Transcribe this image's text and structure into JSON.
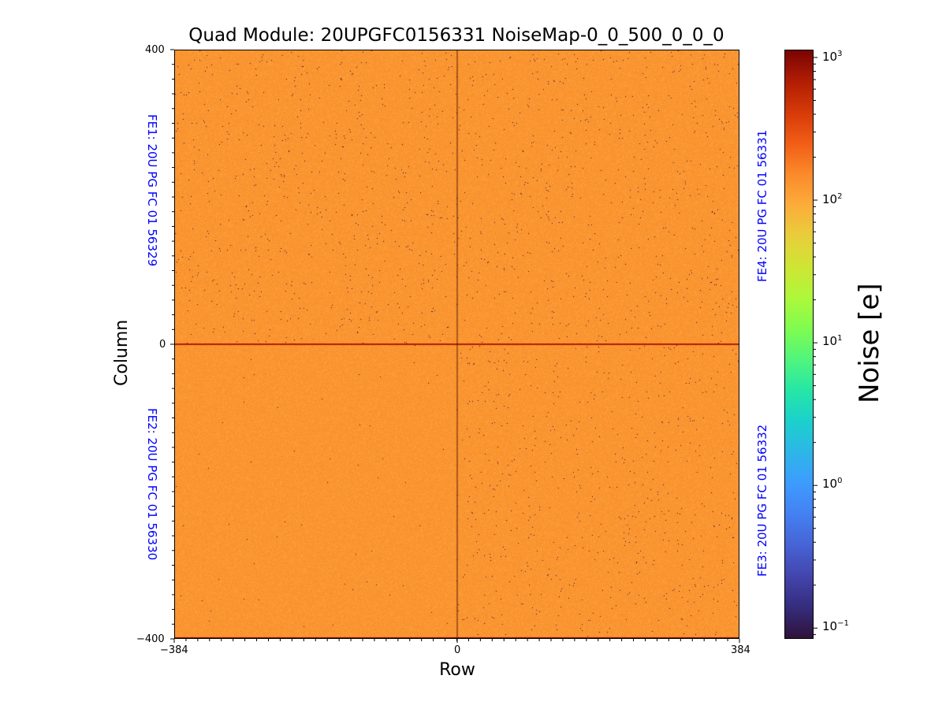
{
  "chart_data": {
    "type": "heatmap",
    "title": "Quad Module: 20UPGFC0156331 NoiseMap-0_0_500_0_0_0",
    "xlabel": "Row",
    "ylabel": "Column",
    "xlim": [
      -384,
      384
    ],
    "ylim": [
      -400,
      400
    ],
    "x_ticks": [
      "−384",
      "0",
      "384"
    ],
    "y_ticks": [
      "400",
      "0",
      "−400"
    ],
    "typical_value": 90,
    "hot_line_value": 300,
    "dead_pixel_value": 0.1,
    "colorbar": {
      "label": "Noise [e]",
      "scale": "log",
      "range": [
        0.084,
        1135
      ],
      "colormap": "turbo",
      "ticks": [
        {
          "base": "10",
          "exp": "3"
        },
        {
          "base": "10",
          "exp": "2"
        },
        {
          "base": "10",
          "exp": "1"
        },
        {
          "base": "10",
          "exp": "0"
        },
        {
          "base": "10",
          "exp": "−1"
        }
      ]
    },
    "annotations": {
      "fe1": "FE1: 20U PG FC 01 56329",
      "fe2": "FE2: 20U PG FC 01 56330",
      "fe3": "FE3: 20U PG FC 01 56332",
      "fe4": "FE4: 20U PG FC 01 56331"
    },
    "colors": {
      "bg": "#fb9a33",
      "annotation": "#0000ff"
    }
  }
}
